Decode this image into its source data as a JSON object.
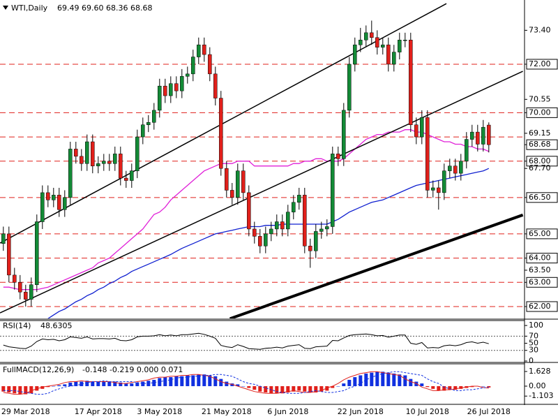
{
  "chart_data": [
    {
      "type": "candlestick",
      "title": "WTI,Daily",
      "subtitle": "69.49 69.60 68.36 68.68",
      "categories": [
        null,
        null,
        null,
        null,
        "29 Mar 2018",
        null,
        null,
        null,
        null,
        null,
        null,
        null,
        null,
        null,
        null,
        null,
        null,
        "17 Apr 2018",
        null,
        null,
        null,
        null,
        null,
        null,
        null,
        null,
        null,
        null,
        "3 May 2018",
        null,
        null,
        null,
        null,
        null,
        null,
        null,
        null,
        null,
        null,
        null,
        "21 May 2018",
        null,
        null,
        null,
        null,
        null,
        null,
        null,
        null,
        null,
        null,
        "6 Jun 2018",
        null,
        null,
        null,
        null,
        null,
        null,
        null,
        null,
        null,
        null,
        null,
        null,
        "22 Jun 2018",
        null,
        null,
        null,
        null,
        null,
        null,
        null,
        null,
        null,
        null,
        null,
        "10 Jul 2018",
        null,
        null,
        null,
        null,
        null,
        null,
        null,
        null,
        null,
        null,
        "26 Jul 2018"
      ],
      "xlim": [
        -0.6,
        93.4
      ],
      "open": [
        64.6,
        65.0,
        63.3,
        63.0,
        62.6,
        62.3,
        62.9,
        65.5,
        66.7,
        66.4,
        66.6,
        66.0,
        66.5,
        68.5,
        68.2,
        67.9,
        68.8,
        67.8,
        67.9,
        68.0,
        67.9,
        68.3,
        67.3,
        67.2,
        67.6,
        69.0,
        69.5,
        69.6,
        70.1,
        71.1,
        70.7,
        71.2,
        70.9,
        71.5,
        71.6,
        72.3,
        72.8,
        72.4,
        71.6,
        70.6,
        67.7,
        66.8,
        66.5,
        67.6,
        66.7,
        65.2,
        64.9,
        64.5,
        65.0,
        65.2,
        65.5,
        65.2,
        65.9,
        66.3,
        66.6,
        64.5,
        64.3,
        65.1,
        65.2,
        65.3,
        68.3,
        68.1,
        70.1,
        72.0,
        72.8,
        73.0,
        73.3,
        73.1,
        72.7,
        72.8,
        72.0,
        72.5,
        73.0,
        73.0,
        69.5,
        69.0,
        69.8,
        66.8,
        66.9,
        66.7,
        67.6,
        67.8,
        67.5,
        68.0,
        68.9,
        69.2,
        68.7,
        69.49
      ],
      "high": [
        65.3,
        65.3,
        63.6,
        63.3,
        62.9,
        63.2,
        65.8,
        67.0,
        67.0,
        66.9,
        66.9,
        66.8,
        68.8,
        68.8,
        68.5,
        69.1,
        69.1,
        68.2,
        68.3,
        68.3,
        68.6,
        68.6,
        67.6,
        67.9,
        69.3,
        69.8,
        69.9,
        70.4,
        71.4,
        71.4,
        71.5,
        71.5,
        71.8,
        71.9,
        72.6,
        73.1,
        73.1,
        72.7,
        71.9,
        70.9,
        68.0,
        67.1,
        67.9,
        67.9,
        67.0,
        65.5,
        65.2,
        65.3,
        65.5,
        65.8,
        65.8,
        66.2,
        66.6,
        66.9,
        66.9,
        64.8,
        65.4,
        65.5,
        65.6,
        68.6,
        68.6,
        70.4,
        72.3,
        73.1,
        73.5,
        73.6,
        73.8,
        73.4,
        73.1,
        73.1,
        72.8,
        73.3,
        73.3,
        73.3,
        69.8,
        70.1,
        70.1,
        67.2,
        67.2,
        67.9,
        68.1,
        68.1,
        68.3,
        69.2,
        69.5,
        69.5,
        69.7,
        69.6
      ],
      "low": [
        64.3,
        63.0,
        62.7,
        62.3,
        62.0,
        62.0,
        62.6,
        65.2,
        66.1,
        66.1,
        65.7,
        65.7,
        66.2,
        67.9,
        67.6,
        67.6,
        67.5,
        67.5,
        67.6,
        67.6,
        67.6,
        67.0,
        66.9,
        66.9,
        67.3,
        68.7,
        69.2,
        69.3,
        69.8,
        70.4,
        70.4,
        70.6,
        70.6,
        71.2,
        71.3,
        72.0,
        72.1,
        71.3,
        70.3,
        67.4,
        66.5,
        66.2,
        66.2,
        66.4,
        64.9,
        64.6,
        64.2,
        64.2,
        64.7,
        64.9,
        64.9,
        64.9,
        65.6,
        66.0,
        64.2,
        63.6,
        64.0,
        64.8,
        64.9,
        65.0,
        67.8,
        67.8,
        69.8,
        71.7,
        72.5,
        72.7,
        72.8,
        72.4,
        72.4,
        71.7,
        71.7,
        72.2,
        72.7,
        69.2,
        68.7,
        68.7,
        66.5,
        66.5,
        66.0,
        66.4,
        67.3,
        67.2,
        67.2,
        67.7,
        68.6,
        68.4,
        68.4,
        68.36
      ],
      "close": [
        65.0,
        63.3,
        63.0,
        62.6,
        62.3,
        62.9,
        65.5,
        66.7,
        66.4,
        66.6,
        66.0,
        66.5,
        68.5,
        68.2,
        67.9,
        68.8,
        67.8,
        67.9,
        68.0,
        67.9,
        68.3,
        67.3,
        67.2,
        67.6,
        69.0,
        69.5,
        69.6,
        70.1,
        71.1,
        70.7,
        71.2,
        70.9,
        71.5,
        71.6,
        72.3,
        72.8,
        72.4,
        71.6,
        70.6,
        67.7,
        66.8,
        66.5,
        67.6,
        66.7,
        65.2,
        64.9,
        64.5,
        65.0,
        65.2,
        65.5,
        65.2,
        65.9,
        66.3,
        66.6,
        64.5,
        64.3,
        65.1,
        65.2,
        65.3,
        68.3,
        68.1,
        70.1,
        72.0,
        72.8,
        73.0,
        73.3,
        73.1,
        72.7,
        72.8,
        72.0,
        72.5,
        73.0,
        73.0,
        69.5,
        69.0,
        69.8,
        66.8,
        66.9,
        66.7,
        67.6,
        67.8,
        67.5,
        68.0,
        68.9,
        69.2,
        68.7,
        69.4,
        68.68
      ],
      "up_color": "#138a36",
      "down_color": "#e0201b",
      "wick_color": "#000000",
      "series": [
        {
          "color": "#e020d8",
          "values": [
            62.8,
            62.8,
            62.75,
            62.7,
            62.7,
            62.7,
            62.7,
            62.75,
            62.8,
            62.9,
            63.0,
            63.1,
            63.2,
            63.3,
            63.4,
            63.5,
            63.6,
            63.8,
            63.9,
            64.0,
            64.2,
            64.4,
            64.6,
            64.8,
            65.0,
            65.2,
            65.5,
            65.8,
            65.9,
            66.1,
            66.4,
            66.6,
            66.8,
            67.0,
            67.2,
            67.4,
            67.6,
            67.7,
            67.8,
            67.9,
            67.9,
            67.9,
            68.0,
            68.0,
            68.0,
            67.8,
            67.8,
            67.8,
            67.8,
            67.8,
            67.8,
            67.8,
            67.9,
            67.9,
            68.0,
            68.0,
            68.1,
            68.1,
            68.0,
            68.0,
            68.0,
            68.1,
            68.3,
            68.5,
            68.7,
            68.9,
            69.0,
            69.1,
            69.1,
            69.2,
            69.2,
            69.2,
            69.3,
            69.3,
            69.2,
            69.2,
            69.1,
            69.0,
            68.9,
            68.8,
            68.8,
            68.7,
            68.7,
            68.6,
            68.6,
            68.5,
            68.5,
            68.4
          ]
        },
        {
          "color": "#1020d0",
          "values": [
            null,
            null,
            null,
            null,
            null,
            null,
            null,
            null,
            61.5,
            61.65,
            61.8,
            61.9,
            62.05,
            62.2,
            62.3,
            62.45,
            62.55,
            62.7,
            62.8,
            62.95,
            63.05,
            63.2,
            63.3,
            63.45,
            63.55,
            63.65,
            63.75,
            63.85,
            63.95,
            64.05,
            64.15,
            64.28,
            64.4,
            64.5,
            64.6,
            64.7,
            64.8,
            64.9,
            65.0,
            65.05,
            65.1,
            65.15,
            65.2,
            65.25,
            65.3,
            65.3,
            65.3,
            65.35,
            65.35,
            65.35,
            65.4,
            65.4,
            65.4,
            65.4,
            65.4,
            65.4,
            65.4,
            65.4,
            65.4,
            65.5,
            65.6,
            65.75,
            65.9,
            66.0,
            66.1,
            66.2,
            66.3,
            66.35,
            66.4,
            66.5,
            66.6,
            66.7,
            66.8,
            66.9,
            67.0,
            67.05,
            67.1,
            67.15,
            67.2,
            67.25,
            67.3,
            67.35,
            67.4,
            67.45,
            67.5,
            67.55,
            67.6,
            67.7
          ]
        }
      ],
      "trendlines": [
        {
          "x": [
            -0.6,
            79.4
          ],
          "y": [
            64.62,
            74.5
          ],
          "color": "#000000",
          "bold": false
        },
        {
          "x": [
            -0.6,
            93.1
          ],
          "y": [
            61.74,
            71.71
          ],
          "color": "#000000",
          "bold": false
        },
        {
          "x": [
            40.6,
            93.1
          ],
          "y": [
            61.5,
            65.78
          ],
          "color": "#000000",
          "bold": true
        }
      ],
      "levels": [
        72,
        70,
        69,
        68,
        66.5,
        65,
        64,
        63,
        62
      ],
      "level_color": "#e0201b",
      "ylim": [
        61.51,
        74.65
      ],
      "yticks": [
        {
          "value": 73.4,
          "label": "73.40"
        },
        {
          "value": 72,
          "label": "72.00",
          "boxed": true
        },
        {
          "value": 70.55,
          "label": "70.55"
        },
        {
          "value": 70,
          "label": "70.00",
          "boxed": true
        },
        {
          "value": 69.15,
          "label": "69.15"
        },
        {
          "value": 68.68,
          "label": "68.68",
          "boxed": true
        },
        {
          "value": 68,
          "label": "68.00",
          "boxed": true
        },
        {
          "value": 67.7,
          "label": "67.70"
        },
        {
          "value": 66.5,
          "label": "66.50",
          "boxed": true
        },
        {
          "value": 65,
          "label": "65.00",
          "boxed": true
        },
        {
          "value": 64,
          "label": "64.00",
          "boxed": true
        },
        {
          "value": 63.5,
          "label": "63.50"
        },
        {
          "value": 63,
          "label": "63.00",
          "boxed": true
        },
        {
          "value": 62,
          "label": "62.00",
          "boxed": true
        }
      ]
    },
    {
      "type": "line",
      "title": "RSI(14)",
      "color": "#000000",
      "values": [
        45,
        40,
        38,
        36,
        35,
        42,
        55,
        62,
        60,
        61,
        57,
        60,
        68,
        66,
        64,
        68,
        62,
        63,
        63,
        62,
        64,
        58,
        57,
        60,
        68,
        70,
        70,
        71,
        74,
        71,
        73,
        71,
        74,
        74,
        76,
        78,
        75,
        70,
        64,
        44,
        40,
        38,
        46,
        41,
        35,
        34,
        33,
        36,
        37,
        39,
        37,
        42,
        44,
        46,
        36,
        35,
        40,
        41,
        42,
        58,
        57,
        65,
        72,
        74,
        75,
        76,
        74,
        71,
        72,
        67,
        70,
        73,
        73,
        50,
        47,
        52,
        37,
        38,
        37,
        43,
        45,
        43,
        46,
        52,
        54,
        50,
        53,
        48.6305
      ],
      "levels": [
        70,
        30
      ],
      "ylim": [
        -2,
        112
      ],
      "yticks": [
        100,
        70,
        50,
        30,
        0
      ]
    },
    {
      "type": "macd",
      "title": "FullMACD(12,26,9)",
      "subtitle": "-0.148 -0.219 0.000 0.071",
      "histogram": [
        -0.6,
        -0.7,
        -0.8,
        -0.9,
        -0.9,
        -0.8,
        -0.5,
        -0.3,
        -0.1,
        0.0,
        0.1,
        0.2,
        0.4,
        0.5,
        0.5,
        0.6,
        0.5,
        0.5,
        0.5,
        0.5,
        0.5,
        0.4,
        0.3,
        0.3,
        0.4,
        0.5,
        0.6,
        0.7,
        0.9,
        1.0,
        1.0,
        1.1,
        1.1,
        1.2,
        1.2,
        1.3,
        1.3,
        1.2,
        1.1,
        0.8,
        0.5,
        0.3,
        0.2,
        0.0,
        -0.2,
        -0.4,
        -0.6,
        -0.7,
        -0.8,
        -0.8,
        -0.8,
        -0.7,
        -0.6,
        -0.5,
        -0.6,
        -0.7,
        -0.7,
        -0.6,
        -0.5,
        -0.2,
        0.0,
        0.3,
        0.7,
        1.0,
        1.2,
        1.4,
        1.5,
        1.6,
        1.6,
        1.5,
        1.4,
        1.3,
        1.2,
        0.8,
        0.5,
        0.3,
        -0.1,
        -0.3,
        -0.5,
        -0.5,
        -0.4,
        -0.4,
        -0.3,
        -0.2,
        -0.1,
        0.0,
        0.0,
        -0.148
      ],
      "pos_color": "#1030e0",
      "neg_color": "#e0201b",
      "series": [
        {
          "color": "#e0201b",
          "dashed": false,
          "values": [
            -0.7,
            -0.8,
            -0.9,
            -0.9,
            -0.8,
            -0.5,
            -0.3,
            -0.1,
            0.0,
            0.1,
            0.2,
            0.4,
            0.5,
            0.5,
            0.6,
            0.5,
            0.5,
            0.5,
            0.5,
            0.5,
            0.4,
            0.3,
            0.3,
            0.4,
            0.5,
            0.6,
            0.7,
            0.9,
            1.0,
            1.0,
            1.1,
            1.1,
            1.2,
            1.2,
            1.3,
            1.3,
            1.2,
            1.1,
            0.8,
            0.5,
            0.3,
            0.2,
            0.0,
            -0.2,
            -0.4,
            -0.6,
            -0.7,
            -0.8,
            -0.8,
            -0.8,
            -0.7,
            -0.6,
            -0.5,
            -0.6,
            -0.7,
            -0.7,
            -0.6,
            -0.5,
            -0.2,
            0.0,
            0.3,
            0.7,
            1.0,
            1.2,
            1.4,
            1.5,
            1.6,
            1.6,
            1.5,
            1.4,
            1.3,
            1.2,
            0.8,
            0.5,
            0.3,
            -0.1,
            -0.3,
            -0.5,
            -0.5,
            -0.4,
            -0.4,
            -0.3,
            -0.2,
            -0.1,
            0.0,
            0.0,
            -0.148,
            -0.219
          ]
        },
        {
          "color": "#1030e0",
          "dashed": true,
          "values": [
            -0.5,
            -0.5,
            -0.5,
            -0.6,
            -0.7,
            -0.8,
            -0.9,
            -0.9,
            -0.8,
            -0.5,
            -0.3,
            -0.1,
            0.0,
            0.1,
            0.2,
            0.4,
            0.5,
            0.5,
            0.6,
            0.5,
            0.5,
            0.5,
            0.5,
            0.5,
            0.4,
            0.3,
            0.3,
            0.4,
            0.5,
            0.6,
            0.7,
            0.9,
            1.0,
            1.0,
            1.1,
            1.1,
            1.2,
            1.2,
            1.3,
            1.3,
            1.2,
            1.1,
            0.8,
            0.5,
            0.3,
            0.2,
            0.0,
            -0.2,
            -0.4,
            -0.6,
            -0.7,
            -0.8,
            -0.8,
            -0.8,
            -0.7,
            -0.6,
            -0.5,
            -0.6,
            -0.7,
            -0.7,
            -0.6,
            -0.5,
            -0.2,
            0.0,
            0.3,
            0.7,
            1.0,
            1.2,
            1.4,
            1.5,
            1.6,
            1.6,
            1.5,
            1.4,
            1.3,
            1.2,
            0.8,
            0.5,
            0.3,
            -0.1,
            -0.3,
            -0.5,
            -0.5,
            -0.4,
            -0.4,
            -0.3,
            -0.2,
            -0.1
          ]
        }
      ],
      "ylim": [
        -1.94,
        2.4
      ],
      "yticks": [
        1.628,
        {
          "value": 0,
          "label": "0.00"
        },
        -1.103
      ]
    }
  ]
}
